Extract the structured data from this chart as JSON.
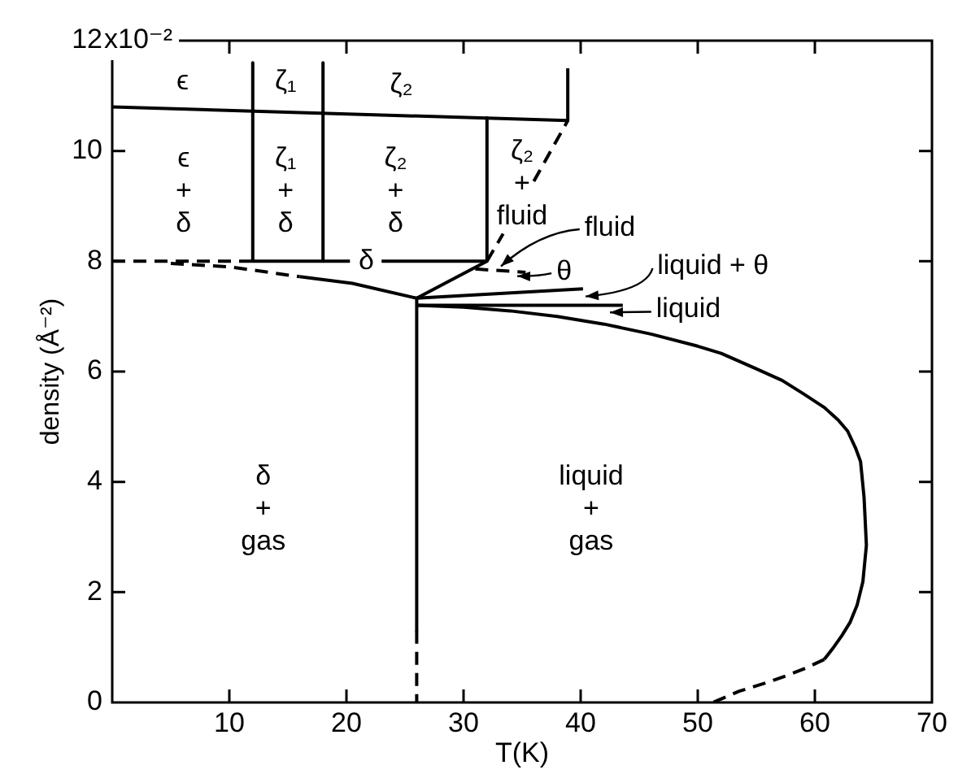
{
  "chart_data": {
    "type": "line",
    "xlabel": "T(K)",
    "ylabel": "density (Å⁻²)",
    "xlim": [
      0,
      70
    ],
    "ylim": [
      0,
      12
    ],
    "xticks": [
      10,
      20,
      30,
      40,
      50,
      60,
      70
    ],
    "yticks": [
      0,
      2,
      4,
      6,
      8,
      10,
      12
    ],
    "marker": "none",
    "line_style": "solid",
    "series": [
      {
        "color": "#000000",
        "x": [
          0,
          38.9,
          38.9
        ],
        "values": [
          10.8,
          10.55,
          11.5
        ]
      },
      {
        "color": "#000000",
        "x": [
          12,
          12
        ],
        "values": [
          11.6,
          8
        ]
      },
      {
        "color": "#000000",
        "x": [
          18,
          18
        ],
        "values": [
          11.6,
          8
        ]
      },
      {
        "color": "#000000",
        "x": [
          32,
          32
        ],
        "values": [
          10.6,
          8
        ]
      },
      {
        "color": "#000000",
        "x": [
          12,
          20.3,
          21.7,
          23,
          32
        ],
        "values": [
          8,
          8,
          null,
          8,
          8
        ]
      },
      {
        "color": "#000000",
        "line_style": "dashed",
        "x": [
          0,
          12
        ],
        "values": [
          8,
          8
        ]
      },
      {
        "color": "#000000",
        "line_style": "dashed",
        "x": [
          5,
          10,
          16
        ],
        "values": [
          7.96,
          7.9,
          7.72
        ]
      },
      {
        "color": "#000000",
        "x": [
          16,
          20.5,
          26,
          40.2
        ],
        "values": [
          7.72,
          7.6,
          7.33,
          7.5
        ]
      },
      {
        "color": "#000000",
        "x": [
          26,
          32
        ],
        "values": [
          7.33,
          8
        ]
      },
      {
        "color": "#000000",
        "line_style": "dashed",
        "x": [
          32,
          33.38,
          34.9,
          36,
          38.9
        ],
        "values": [
          8,
          8.5,
          null,
          9.45,
          10.55
        ]
      },
      {
        "color": "#000000",
        "line_style": "dashed",
        "x": [
          31,
          35.3
        ],
        "values": [
          7.86,
          7.8
        ]
      },
      {
        "color": "#000000",
        "x": [
          26,
          43.6
        ],
        "values": [
          7.2,
          7.2
        ]
      },
      {
        "color": "#000000",
        "x": [
          26,
          30,
          34,
          38,
          42,
          46,
          50,
          52,
          55,
          57.2,
          59,
          60.8,
          62,
          62.8,
          63.5,
          63.9,
          64.2,
          64.4,
          64.1,
          63.6,
          63,
          62.3,
          61.6,
          60.8
        ],
        "values": [
          7.2,
          7.17,
          7.1,
          7,
          6.86,
          6.68,
          6.46,
          6.33,
          6.05,
          5.84,
          5.6,
          5.35,
          5.12,
          4.92,
          4.6,
          4.37,
          3.72,
          2.85,
          2.19,
          1.76,
          1.45,
          1.21,
          1,
          0.78
        ]
      },
      {
        "color": "#000000",
        "line_style": "dashed",
        "x": [
          60.8,
          59.2,
          57.5,
          55.6,
          53.5,
          51.3
        ],
        "values": [
          0.78,
          0.62,
          0.48,
          0.34,
          0.2,
          0
        ]
      },
      {
        "color": "#000000",
        "x": [
          26,
          26
        ],
        "values": [
          7.33,
          1.3
        ]
      },
      {
        "color": "#000000",
        "line_style": "dashed",
        "x": [
          26,
          26
        ],
        "values": [
          1.3,
          0
        ]
      }
    ],
    "annotations": [
      "x10⁻²",
      "ϵ",
      "ζ₁",
      "ζ₂",
      "ϵ\n+\nδ",
      "ζ₁\n+\nδ",
      "ζ₂\n+\nδ",
      "ζ₂\n+\nfluid",
      "δ",
      {
        "text": "fluid",
        "x": 33.2,
        "y": 7.9
      },
      {
        "text": "θ",
        "x": 34.6,
        "y": 7.72
      },
      {
        "text": "liquid + θ",
        "x": 40.4,
        "y": 7.36
      },
      {
        "text": "liquid",
        "x": 42.5,
        "y": 7.08
      },
      "δ\n+\ngas",
      "liquid\n+\ngas"
    ]
  }
}
